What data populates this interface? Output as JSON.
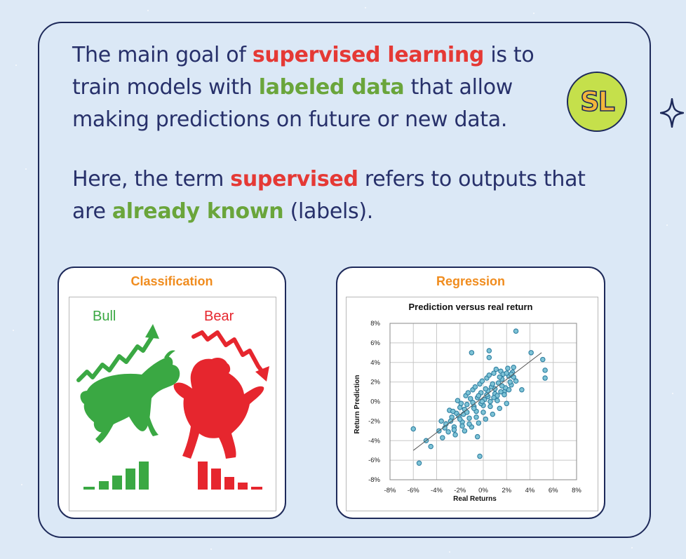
{
  "paragraph1": {
    "p1": "The main goal of ",
    "h1": "supervised learning",
    "p2": " is to train models with ",
    "h2": "labeled data",
    "p3": " that allow making predictions on future or new data."
  },
  "paragraph2": {
    "p1": "Here, the term ",
    "h1": "supervised",
    "p2": " refers to outputs that are ",
    "h2": "already known",
    "p3": " (labels)."
  },
  "badge": {
    "text": "SL"
  },
  "icons": {
    "sparkle": "sparkle-icon",
    "bull": "bull-icon",
    "bear": "bear-icon"
  },
  "colors": {
    "highlight_red": "#e53935",
    "highlight_green": "#6aa53b",
    "title_orange": "#f08c1e",
    "bull_green": "#3aa843",
    "bear_red": "#e6262e",
    "point_fill": "#7ec3d6"
  },
  "classification": {
    "title": "Classification",
    "bull_label": "Bull",
    "bear_label": "Bear"
  },
  "regression": {
    "title": "Regression"
  },
  "chart_data": {
    "type": "scatter",
    "title": "Prediction versus real return",
    "xlabel": "Real Returns",
    "ylabel": "Return Prediction",
    "xlim": [
      -8,
      8
    ],
    "ylim": [
      -8,
      8
    ],
    "xticks": [
      "-8%",
      "-6%",
      "-4%",
      "-2%",
      "0%",
      "2%",
      "4%",
      "6%",
      "8%"
    ],
    "yticks": [
      "8%",
      "6%",
      "4%",
      "2%",
      "0%",
      "-2%",
      "-4%",
      "-6%",
      "-8%"
    ],
    "grid": true,
    "trendline": [
      [
        -6,
        -5
      ],
      [
        5,
        5
      ]
    ],
    "points": [
      [
        -6,
        -2.8
      ],
      [
        -4.9,
        -4.0
      ],
      [
        -4.5,
        -4.6
      ],
      [
        -5.5,
        -6.3
      ],
      [
        -3.5,
        -3.7
      ],
      [
        -0.3,
        -5.6
      ],
      [
        -0.5,
        -3.6
      ],
      [
        -1.0,
        5.0
      ],
      [
        0.5,
        5.2
      ],
      [
        0.5,
        4.5
      ],
      [
        4.1,
        5.0
      ],
      [
        5.1,
        4.3
      ],
      [
        5.3,
        3.2
      ],
      [
        5.3,
        2.4
      ],
      [
        2.8,
        7.2
      ],
      [
        3.3,
        1.2
      ],
      [
        2.6,
        3.5
      ],
      [
        -3.6,
        -2.0
      ],
      [
        -3.2,
        -2.3
      ],
      [
        -2.7,
        -1.6
      ],
      [
        -2.3,
        -1.2
      ],
      [
        -2.0,
        -0.6
      ],
      [
        -1.7,
        -1.3
      ],
      [
        -1.4,
        -0.3
      ],
      [
        -1.1,
        0.3
      ],
      [
        -0.8,
        -0.5
      ],
      [
        -0.5,
        0.4
      ],
      [
        -0.2,
        0.9
      ],
      [
        0.1,
        0.2
      ],
      [
        0.4,
        1.1
      ],
      [
        0.7,
        1.5
      ],
      [
        1.0,
        0.8
      ],
      [
        1.3,
        1.9
      ],
      [
        1.6,
        2.3
      ],
      [
        1.9,
        1.4
      ],
      [
        2.2,
        2.6
      ],
      [
        2.5,
        3.0
      ],
      [
        2.8,
        2.1
      ],
      [
        -2.5,
        -2.6
      ],
      [
        -1.8,
        -2.1
      ],
      [
        -1.2,
        -1.7
      ],
      [
        -0.6,
        -1.0
      ],
      [
        0.0,
        -0.4
      ],
      [
        0.6,
        0.0
      ],
      [
        1.2,
        0.6
      ],
      [
        1.8,
        1.0
      ],
      [
        2.4,
        1.7
      ],
      [
        -2.9,
        -0.9
      ],
      [
        -2.2,
        0.1
      ],
      [
        -1.5,
        0.6
      ],
      [
        -0.9,
        1.2
      ],
      [
        -0.3,
        1.8
      ],
      [
        0.3,
        2.4
      ],
      [
        0.9,
        2.9
      ],
      [
        1.5,
        3.1
      ],
      [
        2.1,
        3.4
      ],
      [
        -3.0,
        -3.1
      ],
      [
        -2.4,
        -3.4
      ],
      [
        -1.6,
        -3.0
      ],
      [
        -1.0,
        -2.6
      ],
      [
        -0.4,
        -2.2
      ],
      [
        0.2,
        -1.8
      ],
      [
        0.8,
        -1.3
      ],
      [
        1.4,
        -0.7
      ],
      [
        2.0,
        -0.2
      ],
      [
        -1.9,
        -0.2
      ],
      [
        -1.3,
        0.9
      ],
      [
        -0.7,
        1.5
      ],
      [
        -0.1,
        2.1
      ],
      [
        0.5,
        2.7
      ],
      [
        1.1,
        3.3
      ],
      [
        1.7,
        2.8
      ],
      [
        2.3,
        2.0
      ],
      [
        -3.3,
        -2.7
      ],
      [
        -2.8,
        -2.0
      ],
      [
        -2.1,
        -1.5
      ],
      [
        -1.6,
        -0.8
      ],
      [
        -0.9,
        -0.1
      ],
      [
        -0.4,
        0.6
      ],
      [
        0.2,
        1.3
      ],
      [
        0.8,
        1.8
      ],
      [
        1.4,
        2.5
      ],
      [
        2.0,
        2.9
      ],
      [
        -1.2,
        -2.3
      ],
      [
        -0.6,
        -1.6
      ],
      [
        0.0,
        -1.1
      ],
      [
        0.6,
        -0.5
      ],
      [
        1.2,
        0.1
      ],
      [
        1.8,
        0.7
      ],
      [
        -2.6,
        -1.0
      ],
      [
        -2.0,
        -1.8
      ],
      [
        -1.4,
        -1.1
      ],
      [
        -0.8,
        -0.7
      ],
      [
        -0.2,
        -0.2
      ],
      [
        0.4,
        0.5
      ],
      [
        1.0,
        1.3
      ],
      [
        1.6,
        1.6
      ],
      [
        2.2,
        1.2
      ],
      [
        2.6,
        2.5
      ],
      [
        -3.8,
        -3.0
      ],
      [
        -2.5,
        -2.9
      ],
      [
        -1.8,
        -2.5
      ],
      [
        -0.1,
        0.0
      ],
      [
        0.3,
        0.7
      ],
      [
        0.9,
        0.4
      ],
      [
        1.5,
        1.0
      ],
      [
        2.4,
        2.8
      ]
    ]
  }
}
